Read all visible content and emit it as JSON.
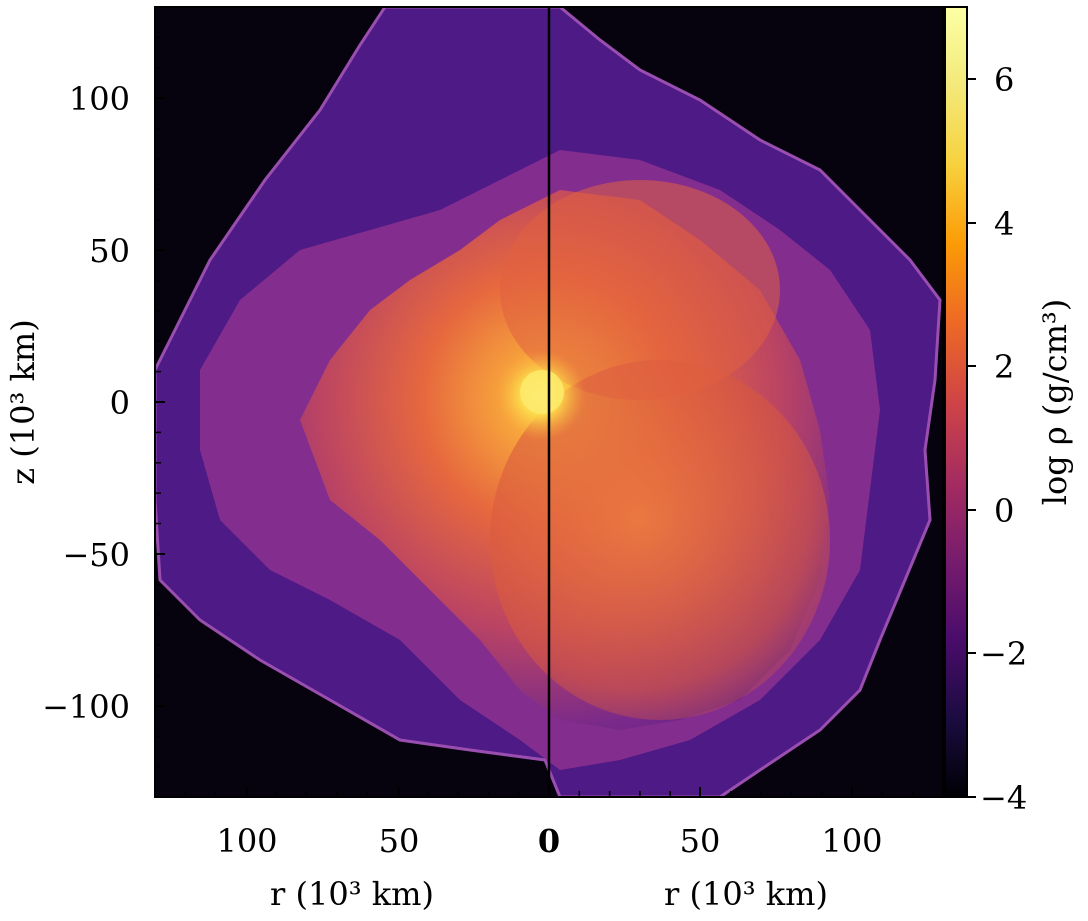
{
  "chart_data": {
    "type": "heatmap",
    "panels": [
      "left",
      "right"
    ],
    "xlabel_left": "r",
    "xlabel_right": "r",
    "xlabel_unit": "(10³ km)",
    "ylabel": "z",
    "ylabel_unit": "(10³ km)",
    "xticks": [
      {
        "value": -100,
        "label": "100"
      },
      {
        "value": -50,
        "label": "50"
      },
      {
        "value": 0,
        "label": "0"
      },
      {
        "value": 50,
        "label": "50"
      },
      {
        "value": 100,
        "label": "100"
      }
    ],
    "yticks": [
      {
        "value": 100,
        "label": "100"
      },
      {
        "value": 50,
        "label": "50"
      },
      {
        "value": 0,
        "label": "0"
      },
      {
        "value": -50,
        "label": "−50"
      },
      {
        "value": -100,
        "label": "−100"
      }
    ],
    "xlim": [
      -130,
      130
    ],
    "ylim": [
      -130,
      130
    ],
    "colorbar": {
      "label": "log ρ (g/cm³)",
      "range": [
        -4,
        7
      ],
      "ticks": [
        {
          "value": 6,
          "label": "6"
        },
        {
          "value": 4,
          "label": "4"
        },
        {
          "value": 2,
          "label": "2"
        },
        {
          "value": 0,
          "label": "0"
        },
        {
          "value": -2,
          "label": "−2"
        },
        {
          "value": -4,
          "label": "−4"
        }
      ],
      "colormap": "inferno"
    },
    "core": {
      "center_r": 0,
      "center_z": 2,
      "log_rho": 6.5
    },
    "colors": {
      "background": "#06030f",
      "ejecta_outer": "#4a1486",
      "ejecta_mid": "#a63a86",
      "ejecta_inner": "#e8663e",
      "core": "#fcd84a",
      "divider": "#000000"
    }
  }
}
